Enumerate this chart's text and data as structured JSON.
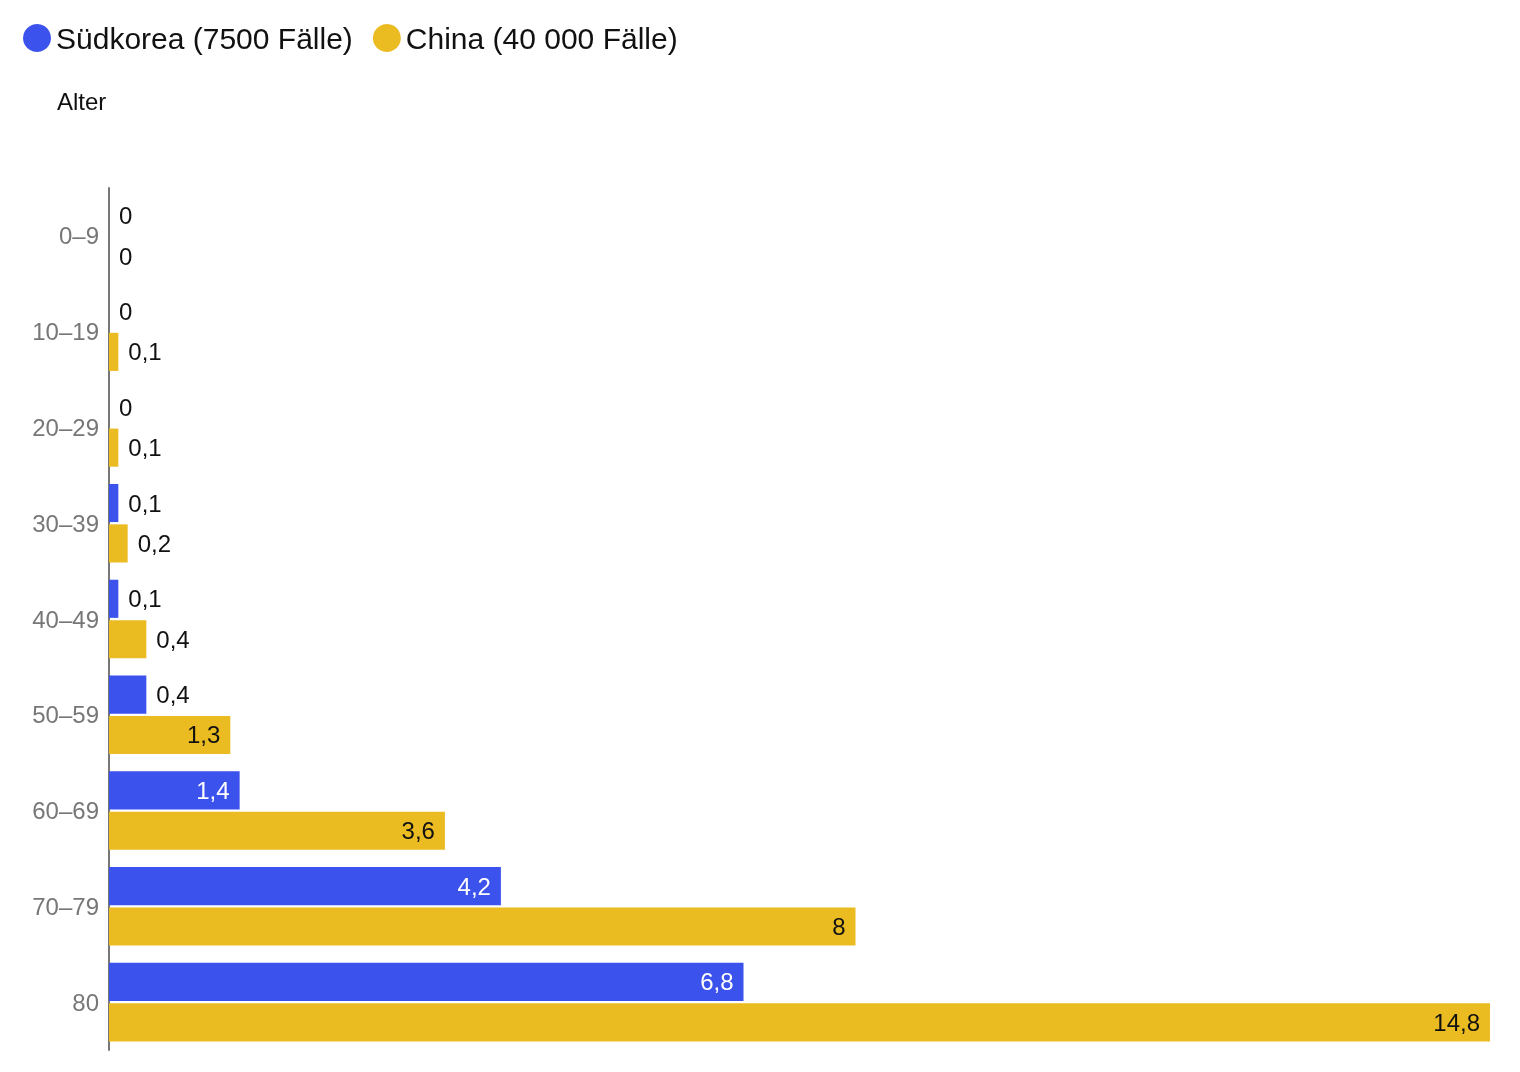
{
  "chart_data": {
    "type": "bar",
    "orientation": "horizontal",
    "ylabel": "Alter",
    "legend": "top left",
    "categories": [
      "0–9",
      "10–19",
      "20–29",
      "30–39",
      "40–49",
      "50–59",
      "60–69",
      "70–79",
      "80"
    ],
    "series": [
      {
        "name": "Südkorea (7500 Fälle)",
        "color": "#3b52ec",
        "values": [
          0,
          0,
          0,
          0.1,
          0.1,
          0.4,
          1.4,
          4.2,
          6.8
        ],
        "value_labels": [
          "0",
          "0",
          "0",
          "0,1",
          "0,1",
          "0,4",
          "1,4",
          "4,2",
          "6,8"
        ]
      },
      {
        "name": "China (40 000 Fälle)",
        "color": "#ebbb22",
        "values": [
          0,
          0.1,
          0.1,
          0.2,
          0.4,
          1.3,
          3.6,
          8,
          14.8
        ],
        "value_labels": [
          "0",
          "0,1",
          "0,1",
          "0,2",
          "0,4",
          "1,3",
          "3,6",
          "8",
          "14,8"
        ]
      }
    ]
  }
}
